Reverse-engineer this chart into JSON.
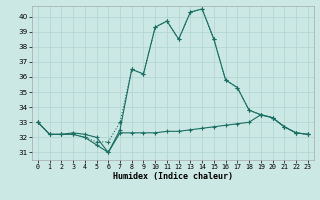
{
  "xlabel": "Humidex (Indice chaleur)",
  "background_color": "#cce8e4",
  "grid_color": "#b0d4d0",
  "line_color": "#1a6e62",
  "xlim": [
    -0.5,
    23.5
  ],
  "ylim": [
    30.5,
    40.7
  ],
  "xticks": [
    0,
    1,
    2,
    3,
    4,
    5,
    6,
    7,
    8,
    9,
    10,
    11,
    12,
    13,
    14,
    15,
    16,
    17,
    18,
    19,
    20,
    21,
    22,
    23
  ],
  "yticks": [
    31,
    32,
    33,
    34,
    35,
    36,
    37,
    38,
    39,
    40
  ],
  "series_dotted": {
    "x": [
      0,
      1,
      2,
      3,
      4,
      5,
      6,
      7,
      8,
      9,
      10,
      11,
      12,
      13,
      14,
      15,
      16,
      17,
      18,
      19,
      20,
      21,
      22,
      23
    ],
    "y": [
      33.0,
      32.2,
      32.2,
      32.2,
      32.0,
      31.7,
      31.7,
      33.0,
      36.5,
      36.2,
      39.3,
      39.7,
      38.5,
      40.3,
      40.5,
      38.5,
      35.8,
      35.3,
      33.8,
      33.5,
      33.3,
      32.7,
      32.3,
      32.2
    ]
  },
  "series_solid_main": {
    "x": [
      0,
      1,
      2,
      3,
      4,
      5,
      6,
      7,
      8,
      9,
      10,
      11,
      12,
      13,
      14,
      15,
      16,
      17,
      18,
      19,
      20,
      21,
      22,
      23
    ],
    "y": [
      33.0,
      32.2,
      32.2,
      32.2,
      32.0,
      31.5,
      31.0,
      32.5,
      36.5,
      36.2,
      39.3,
      39.7,
      38.5,
      40.3,
      40.5,
      38.5,
      35.8,
      35.3,
      33.8,
      33.5,
      33.3,
      32.7,
      32.3,
      32.2
    ]
  },
  "series_solid_flat": {
    "x": [
      0,
      1,
      2,
      3,
      4,
      5,
      6,
      7,
      8,
      9,
      10,
      11,
      12,
      13,
      14,
      15,
      16,
      17,
      18,
      19,
      20,
      21,
      22,
      23
    ],
    "y": [
      33.0,
      32.2,
      32.2,
      32.3,
      32.2,
      32.0,
      31.0,
      32.3,
      32.3,
      32.3,
      32.3,
      32.4,
      32.4,
      32.5,
      32.6,
      32.7,
      32.8,
      32.9,
      33.0,
      33.5,
      33.3,
      32.7,
      32.3,
      32.2
    ]
  }
}
